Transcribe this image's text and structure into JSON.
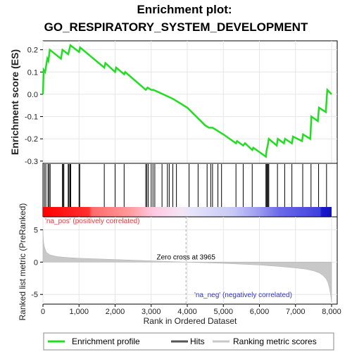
{
  "chart_data": [
    {
      "type": "line",
      "title_line1": "Enrichment plot:",
      "title_line2": "GO_RESPIRATORY_SYSTEM_DEVELOPMENT",
      "ylabel": "Enrichment score (ES)",
      "xlim": [
        0,
        8000
      ],
      "ylim": [
        -0.31,
        0.24
      ],
      "yticks": [
        0.2,
        0.1,
        0.0,
        -0.1,
        -0.2,
        -0.3
      ],
      "ytick_labels": [
        "0.2",
        "0.1",
        "0.0",
        "-0.1",
        "-0.2",
        "-0.3"
      ],
      "line_color": "#22dd22",
      "series": [
        {
          "name": "Enrichment profile",
          "x": [
            0,
            20,
            60,
            120,
            150,
            190,
            500,
            540,
            700,
            760,
            1000,
            1030,
            1700,
            1730,
            2000,
            2030,
            2250,
            2280,
            2850,
            2900,
            3000,
            3060,
            3200,
            3600,
            4000,
            4500,
            4600,
            4700,
            4800,
            4900,
            5000,
            5350,
            5380,
            5550,
            5600,
            5800,
            5830,
            6180,
            6200,
            6230,
            6260,
            6480,
            6510,
            6680,
            6710,
            6900,
            6930,
            7180,
            7210,
            7410,
            7440,
            7620,
            7650,
            7840,
            7880,
            8000
          ],
          "y": [
            0.0,
            0.11,
            0.1,
            0.16,
            0.15,
            0.2,
            0.16,
            0.2,
            0.18,
            0.22,
            0.19,
            0.21,
            0.12,
            0.14,
            0.1,
            0.12,
            0.09,
            0.1,
            0.02,
            0.03,
            0.02,
            0.02,
            0.01,
            -0.02,
            -0.06,
            -0.14,
            -0.15,
            -0.15,
            -0.16,
            -0.17,
            -0.18,
            -0.22,
            -0.21,
            -0.23,
            -0.22,
            -0.25,
            -0.24,
            -0.28,
            -0.25,
            -0.23,
            -0.2,
            -0.23,
            -0.2,
            -0.22,
            -0.2,
            -0.22,
            -0.19,
            -0.21,
            -0.18,
            -0.2,
            -0.1,
            -0.12,
            -0.06,
            -0.08,
            0.02,
            0.0
          ]
        }
      ]
    },
    {
      "type": "hits",
      "hit_positions": [
        40,
        80,
        140,
        170,
        200,
        540,
        560,
        580,
        700,
        720,
        750,
        770,
        1000,
        1020,
        1700,
        2000,
        2250,
        2850,
        2880,
        2920,
        3000,
        3050,
        3100,
        3300,
        3450,
        3500,
        3600,
        3700,
        4050,
        4300,
        4550,
        4650,
        4700,
        4850,
        4950,
        5350,
        5550,
        5800,
        6180,
        6200,
        6220,
        6240,
        6260,
        6500,
        6700,
        6900,
        7200,
        7430,
        7640,
        7860
      ]
    },
    {
      "type": "area",
      "ylabel": "Ranked list metric (PreRanked)",
      "xlabel": "Rank in Ordered Dataset",
      "xlim": [
        0,
        8000
      ],
      "ylim": [
        -6.5,
        7
      ],
      "yticks": [
        5,
        0,
        -5
      ],
      "ytick_labels": [
        "5",
        "0",
        "-5"
      ],
      "xticks": [
        0,
        1000,
        2000,
        3000,
        4000,
        5000,
        6000,
        7000,
        8000
      ],
      "xtick_labels": [
        "0",
        "1,000",
        "2,000",
        "3,000",
        "4,000",
        "5,000",
        "6,000",
        "7,000",
        "8,000"
      ],
      "zero_cross": 3965,
      "zero_cross_label": "Zero cross at 3965",
      "pos_label": "'na_pos' (positively correlated)",
      "neg_label": "'na_neg' (negatively correlated)",
      "x": [
        0,
        10,
        30,
        60,
        100,
        200,
        400,
        700,
        1000,
        2000,
        3000,
        3965,
        5000,
        6000,
        6500,
        7000,
        7300,
        7500,
        7650,
        7750,
        7850,
        7900,
        7940,
        7970,
        7990,
        8000
      ],
      "values": [
        5.0,
        3.5,
        2.6,
        2.0,
        1.5,
        1.1,
        0.85,
        0.7,
        0.6,
        0.4,
        0.2,
        0.0,
        -0.2,
        -0.45,
        -0.65,
        -0.9,
        -1.1,
        -1.35,
        -1.65,
        -2.0,
        -2.6,
        -3.2,
        -4.0,
        -5.0,
        -5.8,
        -6.2
      ]
    }
  ],
  "legend": {
    "items": [
      {
        "label": "Enrichment profile",
        "color": "#22dd22"
      },
      {
        "label": "Hits",
        "color": "#555555"
      },
      {
        "label": "Ranking metric scores",
        "color": "#c8c8c8"
      }
    ]
  },
  "colors": {
    "pos_text": "#e83a3a",
    "neg_text": "#3333cc",
    "metric_fill": "#c8c8c8",
    "zero_cross_line": "#aaaaaa"
  }
}
